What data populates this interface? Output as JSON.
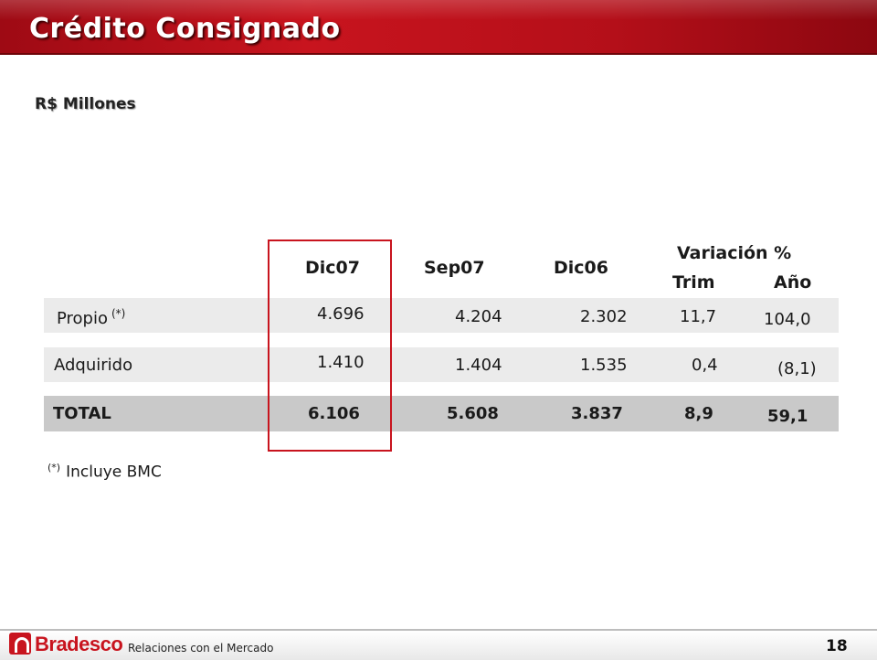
{
  "header": {
    "title": "Crédito Consignado"
  },
  "subtitle": "R$ Millones",
  "table": {
    "columns": {
      "dic07": "Dic07",
      "sep07": "Sep07",
      "dic06": "Dic06",
      "variacion": "Variación %",
      "trim": "Trim",
      "anio": "Año"
    },
    "rows": [
      {
        "label": "Propio",
        "sup": "(*)",
        "dic07": "4.696",
        "sep07": "4.204",
        "dic06": "2.302",
        "trim": "11,7",
        "anio": "104,0"
      },
      {
        "label": "Adquirido",
        "dic07": "1.410",
        "sep07": "1.404",
        "dic06": "1.535",
        "trim": "0,4",
        "anio": "(8,1)"
      },
      {
        "label": "TOTAL",
        "dic07": "6.106",
        "sep07": "5.608",
        "dic06": "3.837",
        "trim": "8,9",
        "anio": "59,1"
      }
    ]
  },
  "footnote": {
    "mark": "(*)",
    "text": "Incluye BMC"
  },
  "footer": {
    "logo": "Bradesco",
    "label": "Relaciones con el Mercado",
    "page": "18"
  },
  "colors": {
    "brand": "#c8141e",
    "row_light": "#ebebeb",
    "row_total": "#c9c9c9"
  },
  "icons": {
    "logo": "bradesco-logo-icon"
  }
}
